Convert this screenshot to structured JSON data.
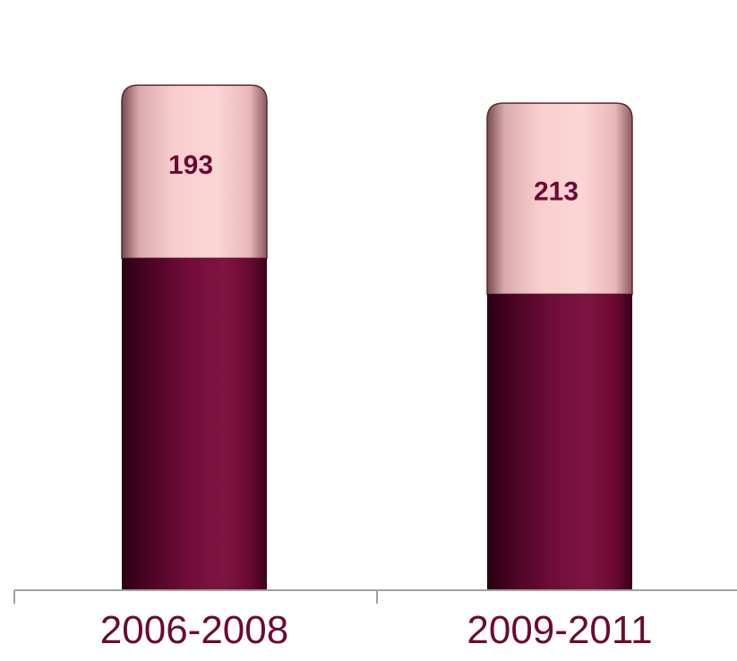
{
  "chart_data": {
    "type": "bar",
    "stacked": true,
    "categories": [
      "2006-2008",
      "2009-2011"
    ],
    "series": [
      {
        "values": [
          370,
          330
        ],
        "color": "#6b0a33"
      },
      {
        "values": [
          193,
          213
        ],
        "color": "#fbd0d0"
      }
    ],
    "data_labels": [
      "193",
      "213"
    ],
    "ylim": [
      0,
      640
    ],
    "grid": false,
    "legend": "none"
  }
}
